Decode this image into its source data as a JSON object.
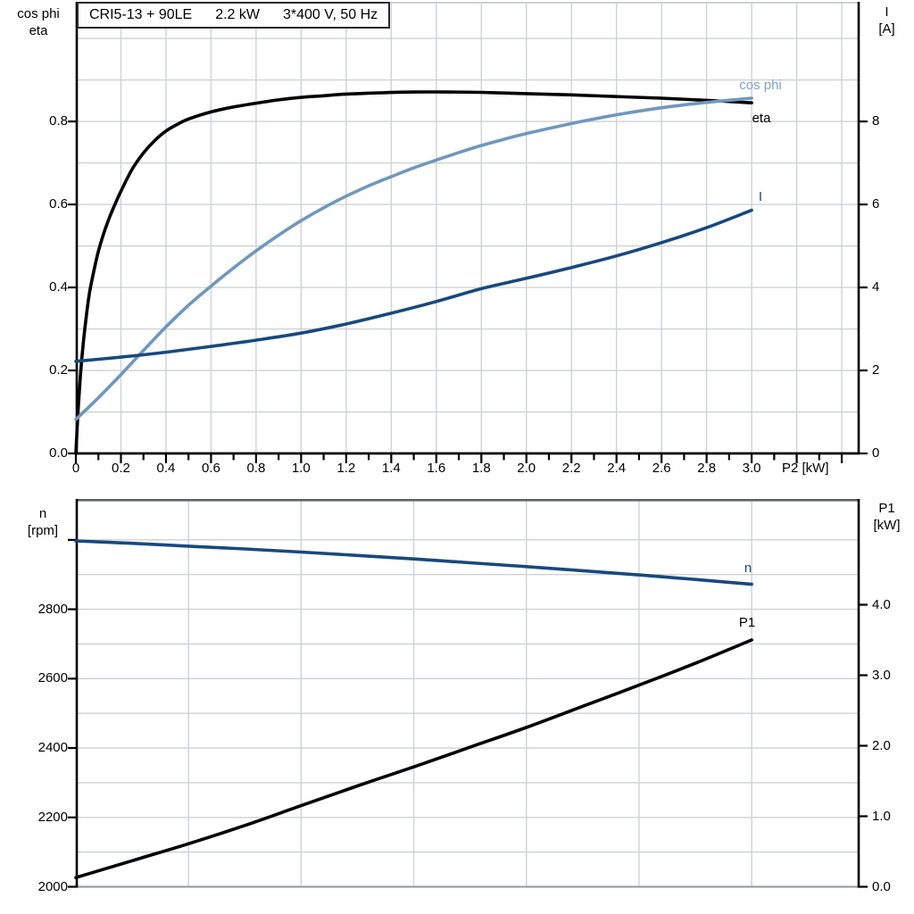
{
  "colors": {
    "black": "#000000",
    "light_blue": "#7097BD",
    "dark_blue": "#17497E",
    "grid": "#ced2d6",
    "frame_dark": "#5f6368",
    "frame_light": "#9aa0a4",
    "background": "#ffffff"
  },
  "title_box": {
    "model": "CRI5-13 + 90LE",
    "power": "2.2 kW",
    "voltage": "3*400 V, 50 Hz"
  },
  "chart_data": [
    {
      "type": "line",
      "title": "CRI5-13 + 90LE  2.2 kW  3*400 V, 50 Hz",
      "x_axis": {
        "title": "P2 [kW]",
        "range": [
          0,
          3.479
        ],
        "ticks": [
          0,
          0.2,
          0.4,
          0.6,
          0.8,
          1.0,
          1.2,
          1.4,
          1.6,
          1.8,
          2.0,
          2.2,
          2.4,
          2.6,
          2.8,
          3.0
        ],
        "tick_labels": [
          "0",
          "0.2",
          "0.4",
          "0.6",
          "0.8",
          "1.0",
          "1.2",
          "1.4",
          "1.6",
          "1.8",
          "2.0",
          "2.2",
          "2.4",
          "2.6",
          "2.8",
          "3.0"
        ],
        "minor_step": 0.1,
        "minor_max": 3.4
      },
      "left_axis": {
        "title_lines": [
          "cos phi",
          "eta"
        ],
        "range": [
          0,
          1.0884
        ],
        "ticks": [
          0,
          0.2,
          0.4,
          0.6,
          0.8
        ],
        "tick_labels": [
          "0.0",
          "0.2",
          "0.4",
          "0.6",
          "0.8"
        ]
      },
      "right_axis": {
        "title_lines": [
          "I",
          "[A]"
        ],
        "range": [
          0,
          10.884
        ],
        "ticks": [
          0,
          2,
          4,
          6,
          8
        ],
        "tick_labels": [
          "0",
          "2",
          "4",
          "6",
          "8"
        ]
      },
      "grid": {
        "v_step": 0.2,
        "v_max": 3.4,
        "h_step": 0.1,
        "h_min": 0.1,
        "h_max": 1.0
      },
      "series": [
        {
          "name": "eta",
          "label": "eta",
          "color": "#000000",
          "axis": "left",
          "points": [
            [
              0,
              0
            ],
            [
              0.01,
              0.105
            ],
            [
              0.02,
              0.185
            ],
            [
              0.03,
              0.25
            ],
            [
              0.045,
              0.325
            ],
            [
              0.06,
              0.385
            ],
            [
              0.08,
              0.44
            ],
            [
              0.1,
              0.487
            ],
            [
              0.125,
              0.532
            ],
            [
              0.15,
              0.57
            ],
            [
              0.175,
              0.602
            ],
            [
              0.2,
              0.632
            ],
            [
              0.25,
              0.685
            ],
            [
              0.3,
              0.724
            ],
            [
              0.35,
              0.754
            ],
            [
              0.4,
              0.777
            ],
            [
              0.45,
              0.793
            ],
            [
              0.5,
              0.806
            ],
            [
              0.6,
              0.823
            ],
            [
              0.7,
              0.835
            ],
            [
              0.8,
              0.844
            ],
            [
              0.9,
              0.852
            ],
            [
              1.0,
              0.858
            ],
            [
              1.1,
              0.862
            ],
            [
              1.2,
              0.866
            ],
            [
              1.35,
              0.869
            ],
            [
              1.5,
              0.871
            ],
            [
              1.65,
              0.871
            ],
            [
              1.8,
              0.87
            ],
            [
              2.0,
              0.867
            ],
            [
              2.2,
              0.864
            ],
            [
              2.4,
              0.86
            ],
            [
              2.6,
              0.856
            ],
            [
              2.8,
              0.851
            ],
            [
              3.0,
              0.845
            ]
          ]
        },
        {
          "name": "cos phi",
          "label": "cos phi",
          "color": "#7097BD",
          "axis": "left",
          "points": [
            [
              0,
              0.082
            ],
            [
              0.1,
              0.134
            ],
            [
              0.2,
              0.19
            ],
            [
              0.3,
              0.248
            ],
            [
              0.4,
              0.305
            ],
            [
              0.5,
              0.357
            ],
            [
              0.6,
              0.403
            ],
            [
              0.7,
              0.447
            ],
            [
              0.8,
              0.488
            ],
            [
              0.9,
              0.526
            ],
            [
              1.0,
              0.561
            ],
            [
              1.1,
              0.592
            ],
            [
              1.2,
              0.62
            ],
            [
              1.3,
              0.645
            ],
            [
              1.4,
              0.667
            ],
            [
              1.5,
              0.688
            ],
            [
              1.6,
              0.707
            ],
            [
              1.7,
              0.725
            ],
            [
              1.8,
              0.742
            ],
            [
              1.9,
              0.757
            ],
            [
              2.0,
              0.771
            ],
            [
              2.2,
              0.795
            ],
            [
              2.4,
              0.816
            ],
            [
              2.6,
              0.833
            ],
            [
              2.8,
              0.846
            ],
            [
              3.0,
              0.856
            ]
          ]
        },
        {
          "name": "I",
          "label": "I",
          "color": "#17497E",
          "axis": "right",
          "points": [
            [
              0,
              2.22
            ],
            [
              0.2,
              2.32
            ],
            [
              0.4,
              2.44
            ],
            [
              0.6,
              2.58
            ],
            [
              0.8,
              2.73
            ],
            [
              1.0,
              2.9
            ],
            [
              1.2,
              3.12
            ],
            [
              1.4,
              3.38
            ],
            [
              1.6,
              3.66
            ],
            [
              1.8,
              3.97
            ],
            [
              2.0,
              4.22
            ],
            [
              2.2,
              4.48
            ],
            [
              2.4,
              4.76
            ],
            [
              2.6,
              5.08
            ],
            [
              2.8,
              5.44
            ],
            [
              3.0,
              5.86
            ]
          ]
        }
      ]
    },
    {
      "type": "line",
      "title": "",
      "x_axis": {
        "title": "",
        "range": [
          0,
          3.479
        ],
        "ticks": [],
        "tick_labels": [],
        "minor_step": 0,
        "minor_max": 0
      },
      "left_axis": {
        "title_lines": [
          "n",
          "[rpm]"
        ],
        "range": [
          2000,
          3118
        ],
        "ticks": [
          2000,
          2200,
          2400,
          2600,
          2800,
          3000
        ],
        "tick_labels": [
          "2000",
          "2200",
          "2400",
          "2600",
          "2800",
          ""
        ]
      },
      "right_axis": {
        "title_lines": [
          "P1",
          "[kW]"
        ],
        "range": [
          0,
          5.5
        ],
        "ticks": [
          0,
          1,
          2,
          3,
          4
        ],
        "tick_labels": [
          "0.0",
          "1.0",
          "2.0",
          "3.0",
          "4.0"
        ]
      },
      "grid": {
        "v_step": 0.5,
        "v_max": 3.0,
        "h_step": 100,
        "h_min": 2100,
        "h_max": 3000
      },
      "series": [
        {
          "name": "n",
          "label": "n",
          "color": "#17497E",
          "axis": "left",
          "points": [
            [
              0,
              2997
            ],
            [
              0.25,
              2990
            ],
            [
              0.5,
              2982
            ],
            [
              0.75,
              2974
            ],
            [
              1.0,
              2965
            ],
            [
              1.25,
              2955
            ],
            [
              1.5,
              2945
            ],
            [
              1.75,
              2934
            ],
            [
              2.0,
              2923
            ],
            [
              2.25,
              2911
            ],
            [
              2.5,
              2899
            ],
            [
              2.75,
              2886
            ],
            [
              3.0,
              2872
            ]
          ]
        },
        {
          "name": "P1",
          "label": "P1",
          "color": "#000000",
          "axis": "right",
          "points": [
            [
              0,
              0.13
            ],
            [
              0.25,
              0.37
            ],
            [
              0.5,
              0.61
            ],
            [
              0.75,
              0.87
            ],
            [
              1.0,
              1.15
            ],
            [
              1.25,
              1.43
            ],
            [
              1.5,
              1.7
            ],
            [
              1.75,
              1.98
            ],
            [
              2.0,
              2.26
            ],
            [
              2.25,
              2.56
            ],
            [
              2.5,
              2.86
            ],
            [
              2.75,
              3.17
            ],
            [
              3.0,
              3.5
            ]
          ]
        }
      ]
    }
  ]
}
